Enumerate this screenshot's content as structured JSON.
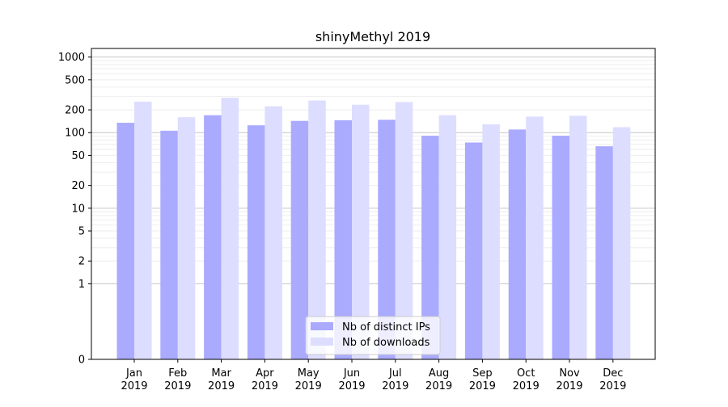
{
  "chart_data": {
    "type": "bar",
    "title": "shinyMethyl 2019",
    "xlabel": "",
    "ylabel": "",
    "y_scale": "symlog",
    "ylim": [
      0,
      1300
    ],
    "y_ticks": [
      0,
      1,
      2,
      5,
      10,
      20,
      50,
      100,
      200,
      500,
      1000
    ],
    "grid": true,
    "legend_position": "bottom-center",
    "categories": [
      {
        "month": "Jan",
        "year": "2019"
      },
      {
        "month": "Feb",
        "year": "2019"
      },
      {
        "month": "Mar",
        "year": "2019"
      },
      {
        "month": "Apr",
        "year": "2019"
      },
      {
        "month": "May",
        "year": "2019"
      },
      {
        "month": "Jun",
        "year": "2019"
      },
      {
        "month": "Jul",
        "year": "2019"
      },
      {
        "month": "Aug",
        "year": "2019"
      },
      {
        "month": "Sep",
        "year": "2019"
      },
      {
        "month": "Oct",
        "year": "2019"
      },
      {
        "month": "Nov",
        "year": "2019"
      },
      {
        "month": "Dec",
        "year": "2019"
      }
    ],
    "series": [
      {
        "name": "Nb of distinct IPs",
        "color": "#aaaaff",
        "values": [
          135,
          106,
          170,
          125,
          143,
          146,
          148,
          91,
          74,
          110,
          91,
          66
        ]
      },
      {
        "name": "Nb of downloads",
        "color": "#ddddff",
        "values": [
          257,
          160,
          289,
          223,
          266,
          234,
          254,
          170,
          129,
          163,
          167,
          118
        ]
      }
    ]
  }
}
